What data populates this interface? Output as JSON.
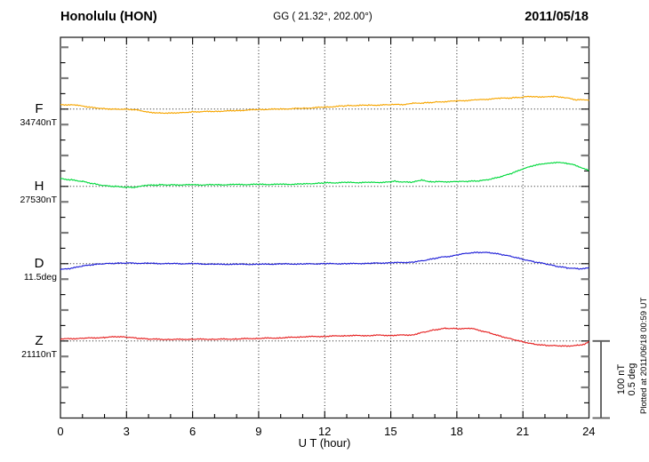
{
  "header": {
    "station": "Honolulu (HON)",
    "coordinates": "GG ( 21.32°, 202.00°)",
    "date": "2011/05/18"
  },
  "scalebar": {
    "label_nt": "100 nT",
    "label_deg": "0.5 deg"
  },
  "side_note": {
    "plotted_at": "Plotted at 2011/06/18 00:59 UT"
  },
  "chart_data": {
    "type": "line",
    "title": "Honolulu (HON) magnetogram 2011/05/18",
    "xlabel": "U T (hour)",
    "x_range": [
      0,
      24
    ],
    "x_ticks": [
      0,
      3,
      6,
      9,
      12,
      15,
      18,
      21,
      24
    ],
    "x_tick_interval_hours": 3,
    "x_minor_interval_hours": 1,
    "grid": "dotted vertical lines every 3 h; dotted horizontal baseline per component",
    "legend_position": "left margin, one label per trace",
    "y_scale_per_division": {
      "nT": 100,
      "deg": 0.5
    },
    "series": [
      {
        "name": "F",
        "base_label": "34740nT",
        "base_value": 34740,
        "unit": "nT",
        "color": "#f7a600",
        "points": [
          [
            0,
            6
          ],
          [
            0.7,
            5
          ],
          [
            1,
            4
          ],
          [
            1.5,
            2
          ],
          [
            2,
            0.5
          ],
          [
            2.5,
            0
          ],
          [
            3,
            0
          ],
          [
            3.5,
            -1
          ],
          [
            4,
            -4
          ],
          [
            4.5,
            -5
          ],
          [
            5,
            -5
          ],
          [
            5.5,
            -4.5
          ],
          [
            6,
            -3.5
          ],
          [
            7,
            -3
          ],
          [
            8,
            -2
          ],
          [
            9,
            -0.5
          ],
          [
            10,
            0
          ],
          [
            11,
            1
          ],
          [
            12,
            2.5
          ],
          [
            12.8,
            4
          ],
          [
            13,
            4.5
          ],
          [
            14,
            5
          ],
          [
            15,
            5.5
          ],
          [
            15.3,
            6.5
          ],
          [
            15.6,
            5.5
          ],
          [
            16,
            7.5
          ],
          [
            16.5,
            8
          ],
          [
            17,
            9
          ],
          [
            18,
            10.5
          ],
          [
            19,
            12
          ],
          [
            20,
            14
          ],
          [
            20.5,
            14.5
          ],
          [
            21,
            15.5
          ],
          [
            21.3,
            16.5
          ],
          [
            21.7,
            16
          ],
          [
            22,
            15.5
          ],
          [
            22.4,
            16.5
          ],
          [
            22.8,
            15.5
          ],
          [
            23,
            14.5
          ],
          [
            23.3,
            12.5
          ],
          [
            23.5,
            12
          ],
          [
            24,
            12
          ]
        ]
      },
      {
        "name": "H",
        "base_label": "27530nT",
        "base_value": 27530,
        "unit": "nT",
        "color": "#00d93c",
        "points": [
          [
            0,
            10
          ],
          [
            0.5,
            8.5
          ],
          [
            1,
            6.5
          ],
          [
            1.5,
            3.5
          ],
          [
            2,
            1
          ],
          [
            2.5,
            0
          ],
          [
            3,
            -1
          ],
          [
            3.3,
            -1.2
          ],
          [
            3.6,
            0
          ],
          [
            4,
            1.5
          ],
          [
            4.5,
            2
          ],
          [
            5,
            2
          ],
          [
            6,
            2
          ],
          [
            7,
            2
          ],
          [
            8,
            2.3
          ],
          [
            9,
            2.6
          ],
          [
            10,
            2.6
          ],
          [
            11,
            3
          ],
          [
            11.8,
            4.3
          ],
          [
            12,
            4.5
          ],
          [
            13,
            5
          ],
          [
            14,
            5
          ],
          [
            15,
            5.5
          ],
          [
            15.2,
            7
          ],
          [
            15.5,
            5.5
          ],
          [
            16,
            5.5
          ],
          [
            16.4,
            8
          ],
          [
            16.8,
            6
          ],
          [
            17,
            6
          ],
          [
            18,
            6
          ],
          [
            18.5,
            6.5
          ],
          [
            19,
            7
          ],
          [
            19.5,
            9
          ],
          [
            20,
            12.5
          ],
          [
            20.5,
            17
          ],
          [
            21,
            22.5
          ],
          [
            21.5,
            27
          ],
          [
            22,
            29.5
          ],
          [
            22.3,
            30
          ],
          [
            22.6,
            31.5
          ],
          [
            23,
            29.5
          ],
          [
            23.3,
            28
          ],
          [
            23.6,
            25
          ],
          [
            24,
            20.5
          ]
        ]
      },
      {
        "name": "D",
        "base_label": "11.5deg",
        "base_value": 11.5,
        "unit": "deg",
        "color": "#2020d8",
        "points": [
          [
            0,
            -0.038
          ],
          [
            0.5,
            -0.03
          ],
          [
            1,
            -0.015
          ],
          [
            1.5,
            -0.006
          ],
          [
            2,
            0
          ],
          [
            2.5,
            0.002
          ],
          [
            3,
            0.004
          ],
          [
            4,
            0.002
          ],
          [
            5,
            0
          ],
          [
            6,
            0
          ],
          [
            7,
            -0.004
          ],
          [
            8,
            -0.004
          ],
          [
            9,
            -0.004
          ],
          [
            10,
            -0.002
          ],
          [
            11,
            -0.002
          ],
          [
            12,
            0
          ],
          [
            13,
            0
          ],
          [
            14,
            0.002
          ],
          [
            15,
            0.006
          ],
          [
            16,
            0.01
          ],
          [
            16.5,
            0.02
          ],
          [
            17,
            0.034
          ],
          [
            17.3,
            0.042
          ],
          [
            17.6,
            0.046
          ],
          [
            18,
            0.057
          ],
          [
            18.5,
            0.068
          ],
          [
            19,
            0.073
          ],
          [
            19.5,
            0.071
          ],
          [
            20,
            0.06
          ],
          [
            20.5,
            0.046
          ],
          [
            21,
            0.028
          ],
          [
            21.5,
            0.012
          ],
          [
            22,
            0
          ],
          [
            22.5,
            -0.016
          ],
          [
            23,
            -0.027
          ],
          [
            23.5,
            -0.033
          ],
          [
            23.8,
            -0.032
          ],
          [
            24,
            -0.027
          ]
        ]
      },
      {
        "name": "Z",
        "base_label": "21110nT",
        "base_value": 21110,
        "unit": "nT",
        "color": "#e62020",
        "points": [
          [
            0,
            2.5
          ],
          [
            1,
            3.5
          ],
          [
            2,
            4.5
          ],
          [
            2.5,
            5.5
          ],
          [
            3,
            5
          ],
          [
            3.5,
            3.5
          ],
          [
            4,
            2.5
          ],
          [
            5,
            2
          ],
          [
            6,
            2.3
          ],
          [
            7,
            2.3
          ],
          [
            8,
            2.6
          ],
          [
            9,
            3.5
          ],
          [
            10,
            4
          ],
          [
            11,
            5.5
          ],
          [
            12,
            6
          ],
          [
            13,
            7
          ],
          [
            14,
            7
          ],
          [
            14.3,
            7.5
          ],
          [
            15,
            7.3
          ],
          [
            16,
            8
          ],
          [
            16.5,
            11.5
          ],
          [
            17,
            14.5
          ],
          [
            17.5,
            16.5
          ],
          [
            18,
            16
          ],
          [
            18.7,
            16
          ],
          [
            19,
            14
          ],
          [
            19.5,
            10.5
          ],
          [
            20,
            6
          ],
          [
            20.5,
            2.5
          ],
          [
            21,
            -1
          ],
          [
            21.5,
            -4
          ],
          [
            22,
            -5.5
          ],
          [
            22.5,
            -6
          ],
          [
            23,
            -6.5
          ],
          [
            23.5,
            -5.5
          ],
          [
            23.8,
            -4
          ],
          [
            24,
            -1
          ]
        ]
      }
    ]
  }
}
